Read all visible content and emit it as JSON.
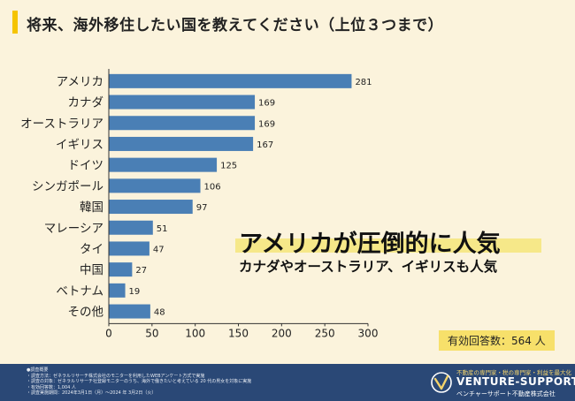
{
  "title": "将来、海外移住したい国を教えてください（上位３つまで）",
  "headline": "アメリカが圧倒的に人気",
  "subheadline": "カナダやオーストラリア、イギリスも人気",
  "total_responses": "有効回答数：564 人",
  "footer": {
    "notes_heading": "●調査概要",
    "notes": [
      "・調査方法：ゼネラルリサーチ株式会社のモニターを利用したWEBアンケート方式で実施",
      "・調査の対象：ゼネラルリサーチ社登録モニターのうち、海外で働きたいと考えている 20 代の男女を対象に実施",
      "・有効回答数：1,004 人",
      "・調査実施期間：2024年3月1日（月）～2024 年 3月2日（火）"
    ],
    "brand_tagline": "不動産の専門家・税の専門家・利益を最大化",
    "brand_name": "VENTURE-SUPPORT",
    "brand_sub": "ベンチャーサポート不動産株式会社"
  },
  "colors": {
    "bar": "#4a7fb5",
    "background": "#fbf3dc",
    "accent": "#f5c400",
    "footer": "#2a4876"
  },
  "chart_data": {
    "type": "bar",
    "orientation": "horizontal",
    "categories": [
      "アメリカ",
      "カナダ",
      "オーストラリア",
      "イギリス",
      "ドイツ",
      "シンガポール",
      "韓国",
      "マレーシア",
      "タイ",
      "中国",
      "ベトナム",
      "その他"
    ],
    "values": [
      281,
      169,
      169,
      167,
      125,
      106,
      97,
      51,
      47,
      27,
      19,
      48
    ],
    "xlim": [
      0,
      300
    ],
    "xticks": [
      0,
      50,
      100,
      150,
      200,
      250,
      300
    ],
    "data_labels": true,
    "grid": false
  }
}
